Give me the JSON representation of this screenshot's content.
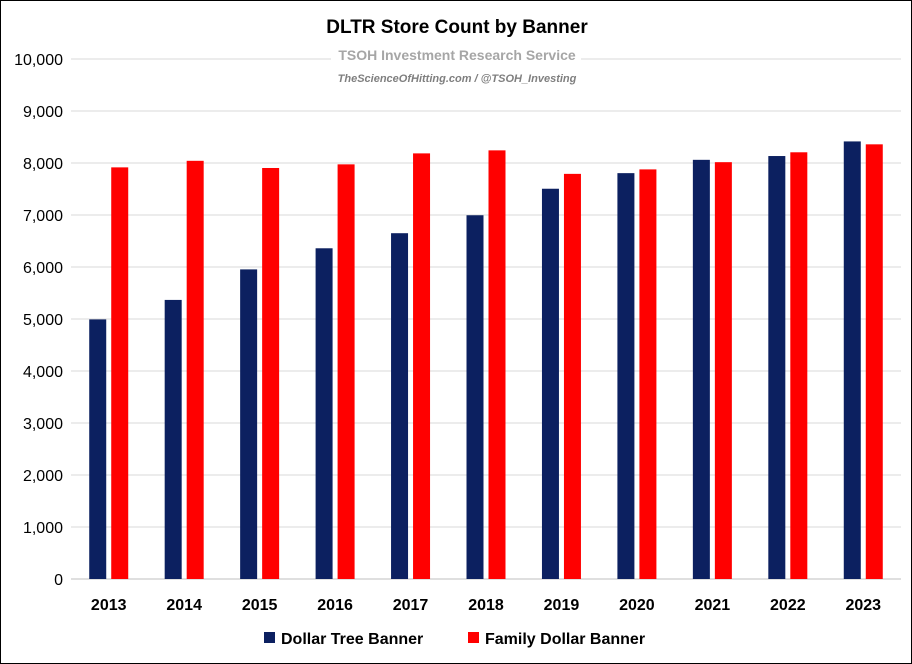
{
  "chart_data": {
    "type": "bar",
    "title": "DLTR Store Count by Banner",
    "subtitle": "TSOH Investment Research Service",
    "source": "TheScienceOfHitting.com / @TSOH_Investing",
    "categories": [
      "2013",
      "2014",
      "2015",
      "2016",
      "2017",
      "2018",
      "2019",
      "2020",
      "2021",
      "2022",
      "2023"
    ],
    "series": [
      {
        "name": "Dollar Tree Banner",
        "color": "#0c2060",
        "values": [
          4992,
          5367,
          5954,
          6360,
          6650,
          6995,
          7505,
          7805,
          8061,
          8134,
          8415
        ]
      },
      {
        "name": "Family Dollar Banner",
        "color": "#ff0000",
        "values": [
          7916,
          8042,
          7904,
          7974,
          8185,
          8243,
          7791,
          7877,
          8016,
          8206,
          8359
        ]
      }
    ],
    "ylim": [
      0,
      10000
    ],
    "yticks": [
      0,
      1000,
      2000,
      3000,
      4000,
      5000,
      6000,
      7000,
      8000,
      9000,
      10000
    ],
    "grid": true,
    "legend_position": "bottom"
  }
}
